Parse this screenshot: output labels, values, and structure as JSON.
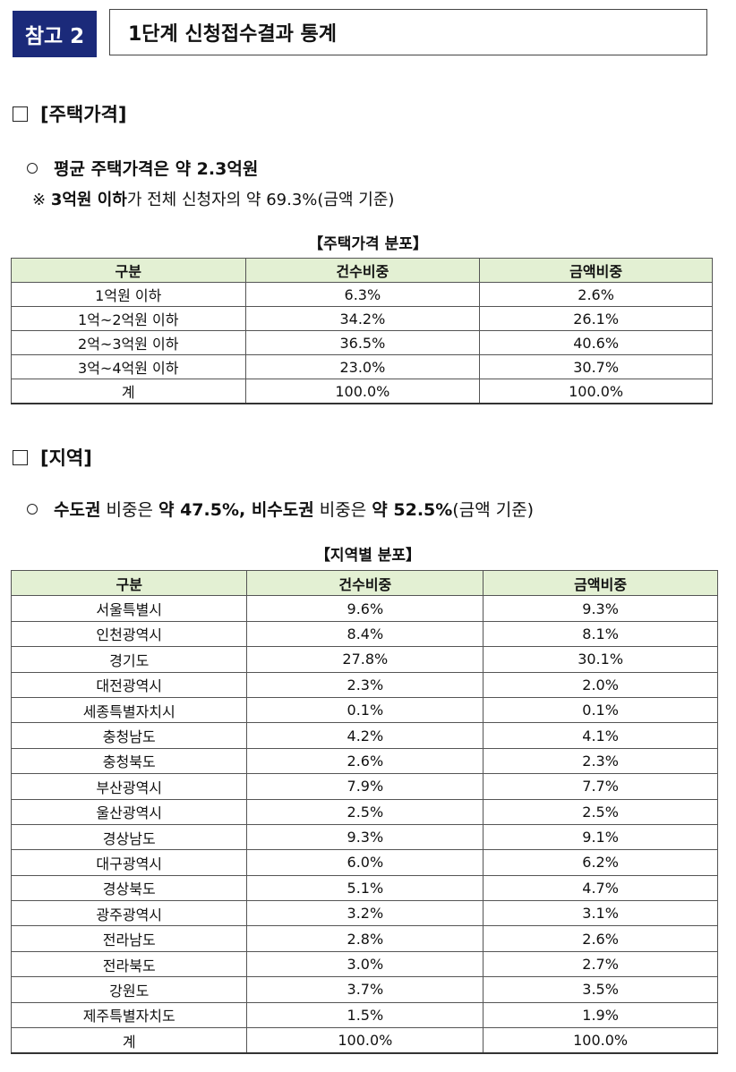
{
  "header": {
    "badge": "참고 2",
    "title": "1단계 신청접수결과 통계"
  },
  "section_price": {
    "heading": "[주택가격]",
    "bullet_bold": "평균 주택가격은 약 2.3억원",
    "note_prefix": "※ ",
    "note_bold": "3억원 이하",
    "note_rest": "가 전체 신청자의 약 69.3%(금액 기준)",
    "table_caption": "【주택가격 분포】",
    "columns": [
      "구분",
      "건수비중",
      "금액비중"
    ],
    "rows": [
      [
        "1억원 이하",
        "6.3%",
        "2.6%"
      ],
      [
        "1억~2억원 이하",
        "34.2%",
        "26.1%"
      ],
      [
        "2억~3억원 이하",
        "36.5%",
        "40.6%"
      ],
      [
        "3억~4억원 이하",
        "23.0%",
        "30.7%"
      ],
      [
        "계",
        "100.0%",
        "100.0%"
      ]
    ]
  },
  "section_region": {
    "heading": "[지역]",
    "bullet_b1": "수도권",
    "bullet_t1": " 비중은 ",
    "bullet_b2": "약 47.5%, 비수도권",
    "bullet_t2": " 비중은 ",
    "bullet_b3": "약 52.5%",
    "bullet_t3": "(금액 기준)",
    "table_caption": "【지역별 분포】",
    "columns": [
      "구분",
      "건수비중",
      "금액비중"
    ],
    "rows": [
      [
        "서울특별시",
        "9.6%",
        "9.3%"
      ],
      [
        "인천광역시",
        "8.4%",
        "8.1%"
      ],
      [
        "경기도",
        "27.8%",
        "30.1%"
      ],
      [
        "대전광역시",
        "2.3%",
        "2.0%"
      ],
      [
        "세종특별자치시",
        "0.1%",
        "0.1%"
      ],
      [
        "충청남도",
        "4.2%",
        "4.1%"
      ],
      [
        "충청북도",
        "2.6%",
        "2.3%"
      ],
      [
        "부산광역시",
        "7.9%",
        "7.7%"
      ],
      [
        "울산광역시",
        "2.5%",
        "2.5%"
      ],
      [
        "경상남도",
        "9.3%",
        "9.1%"
      ],
      [
        "대구광역시",
        "6.0%",
        "6.2%"
      ],
      [
        "경상북도",
        "5.1%",
        "4.7%"
      ],
      [
        "광주광역시",
        "3.2%",
        "3.1%"
      ],
      [
        "전라남도",
        "2.8%",
        "2.6%"
      ],
      [
        "전라북도",
        "3.0%",
        "2.7%"
      ],
      [
        "강원도",
        "3.7%",
        "3.5%"
      ],
      [
        "제주특별자치도",
        "1.5%",
        "1.9%"
      ],
      [
        "계",
        "100.0%",
        "100.0%"
      ]
    ]
  },
  "colors": {
    "badge_bg": "#1b2a7a",
    "table_header_bg": "#e3f0d3"
  }
}
